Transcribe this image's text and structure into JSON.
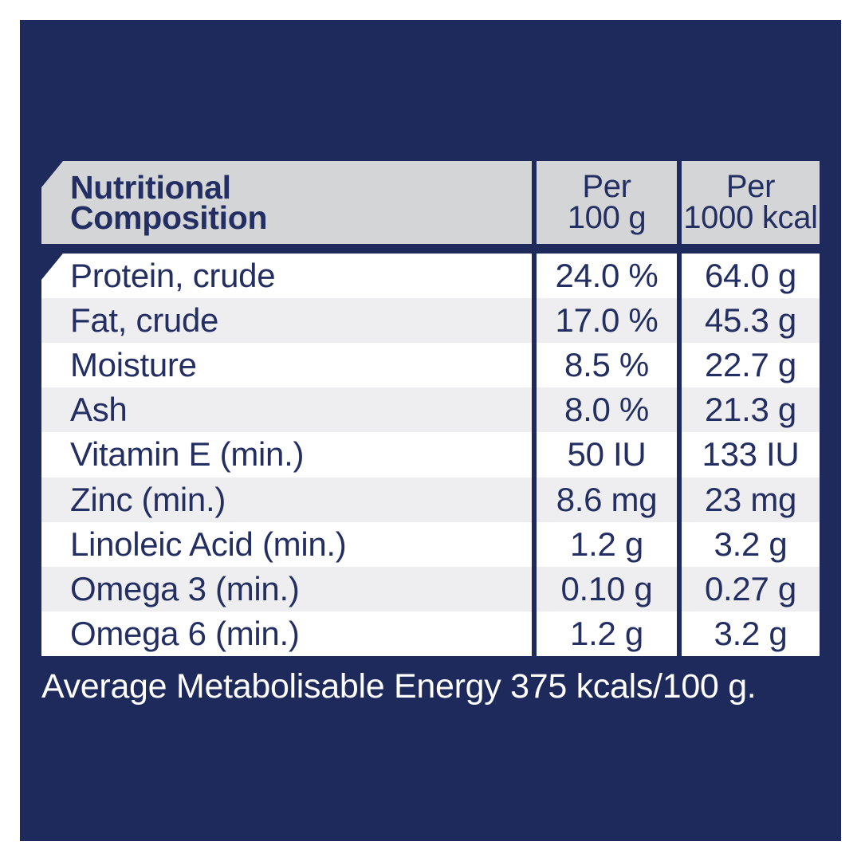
{
  "colors": {
    "panel_navy": "#1E2A5C",
    "header_gray": "#D4D5D7",
    "row_alt_gray": "#EEEEF0",
    "row_white": "#FFFFFF",
    "text_navy": "#232E62",
    "footer_text": "#FFFFFF"
  },
  "table": {
    "header": {
      "title_lines": [
        "Nutritional",
        "Composition"
      ],
      "col_per_100g_lines": [
        "Per",
        "100 g"
      ],
      "col_per_1000kcal_lines": [
        "Per",
        "1000 kcal"
      ]
    },
    "rows": [
      {
        "label": "Protein, crude",
        "per_100g": "24.0 %",
        "per_1000kcal": "64.0 g"
      },
      {
        "label": "Fat, crude",
        "per_100g": "17.0 %",
        "per_1000kcal": "45.3 g"
      },
      {
        "label": "Moisture",
        "per_100g": "8.5 %",
        "per_1000kcal": "22.7 g"
      },
      {
        "label": "Ash",
        "per_100g": "8.0 %",
        "per_1000kcal": "21.3 g"
      },
      {
        "label": "Vitamin E (min.)",
        "per_100g": "50 IU",
        "per_1000kcal": "133 IU"
      },
      {
        "label": "Zinc (min.)",
        "per_100g": "8.6 mg",
        "per_1000kcal": "23 mg"
      },
      {
        "label": "Linoleic Acid (min.)",
        "per_100g": "1.2 g",
        "per_1000kcal": "3.2 g"
      },
      {
        "label": "Omega 3 (min.)",
        "per_100g": "0.10 g",
        "per_1000kcal": "0.27 g"
      },
      {
        "label": "Omega 6 (min.)",
        "per_100g": "1.2 g",
        "per_1000kcal": "3.2 g"
      }
    ]
  },
  "footer": {
    "text": "Average Metabolisable Energy 375 kcals/100 g."
  }
}
